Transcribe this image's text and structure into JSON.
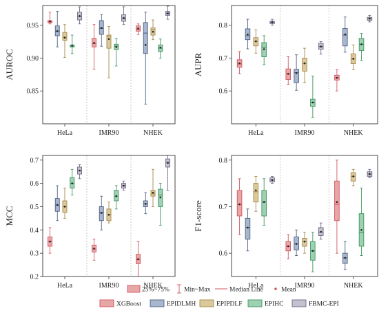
{
  "colors": {
    "XGBoost": {
      "fill": "#e8a7a7",
      "line": "#d2545e"
    },
    "EPIDLMH": {
      "fill": "#a9b6cf",
      "line": "#4f617f"
    },
    "EPIPDLF": {
      "fill": "#dcc99b",
      "line": "#a5894a"
    },
    "EPIHC": {
      "fill": "#9ed0b2",
      "line": "#3f9462"
    },
    "FBMC-EPI": {
      "fill": "#c3c0cf",
      "line": "#6f6a82"
    }
  },
  "legend": {
    "box_label": "25%~75%",
    "range_label": "Min~Max",
    "median_label": "Median Line",
    "mean_label": "Mean",
    "series": [
      "XGBoost",
      "EPIDLMH",
      "EPIPDLF",
      "EPIHC",
      "FBMC-EPI"
    ]
  },
  "chart_data": [
    {
      "type": "box",
      "ylabel": "AUROC",
      "categories": [
        "HeLa",
        "IMR90",
        "NHEK"
      ],
      "ylim": [
        0.8,
        0.98
      ],
      "yticks": [
        0.85,
        0.9,
        0.95
      ],
      "tick_labels": [
        "0.85",
        "0.90",
        "0.95"
      ],
      "series": [
        {
          "name": "XGBoost",
          "boxes": [
            {
              "min": 0.952,
              "q1": 0.954,
              "median": 0.955,
              "q3": 0.957,
              "max": 0.97,
              "mean": 0.956
            },
            {
              "min": 0.883,
              "q1": 0.917,
              "median": 0.922,
              "q3": 0.93,
              "max": 0.951,
              "mean": 0.923
            },
            {
              "min": 0.936,
              "q1": 0.941,
              "median": 0.944,
              "q3": 0.949,
              "max": 0.952,
              "mean": 0.945
            }
          ]
        },
        {
          "name": "EPIDLMH",
          "boxes": [
            {
              "min": 0.917,
              "q1": 0.934,
              "median": 0.941,
              "q3": 0.949,
              "max": 0.971,
              "mean": 0.941
            },
            {
              "min": 0.918,
              "q1": 0.936,
              "median": 0.945,
              "q3": 0.957,
              "max": 0.966,
              "mean": 0.946
            },
            {
              "min": 0.83,
              "q1": 0.907,
              "median": 0.938,
              "q3": 0.954,
              "max": 0.97,
              "mean": 0.92
            }
          ]
        },
        {
          "name": "EPIPDLF",
          "boxes": [
            {
              "min": 0.901,
              "q1": 0.927,
              "median": 0.932,
              "q3": 0.939,
              "max": 0.951,
              "mean": 0.931
            },
            {
              "min": 0.87,
              "q1": 0.915,
              "median": 0.933,
              "q3": 0.935,
              "max": 0.948,
              "mean": 0.929
            },
            {
              "min": 0.928,
              "q1": 0.935,
              "median": 0.943,
              "q3": 0.946,
              "max": 0.958,
              "mean": 0.94
            }
          ]
        },
        {
          "name": "EPIHC",
          "boxes": [
            {
              "min": 0.907,
              "q1": 0.917,
              "median": 0.918,
              "q3": 0.92,
              "max": 0.935,
              "mean": 0.919
            },
            {
              "min": 0.888,
              "q1": 0.913,
              "median": 0.918,
              "q3": 0.921,
              "max": 0.93,
              "mean": 0.917
            },
            {
              "min": 0.9,
              "q1": 0.91,
              "median": 0.915,
              "q3": 0.92,
              "max": 0.929,
              "mean": 0.916
            }
          ]
        },
        {
          "name": "FBMC-EPI",
          "boxes": [
            {
              "min": 0.952,
              "q1": 0.958,
              "median": 0.963,
              "q3": 0.97,
              "max": 0.978,
              "mean": 0.964
            },
            {
              "min": 0.951,
              "q1": 0.956,
              "median": 0.96,
              "q3": 0.966,
              "max": 0.978,
              "mean": 0.961
            },
            {
              "min": 0.959,
              "q1": 0.965,
              "median": 0.968,
              "q3": 0.971,
              "max": 0.979,
              "mean": 0.968
            }
          ]
        }
      ]
    },
    {
      "type": "box",
      "ylabel": "AUPR",
      "categories": [
        "HeLa",
        "IMR90",
        "NHEK"
      ],
      "ylim": [
        0.5,
        0.86
      ],
      "yticks": [
        0.6,
        0.7,
        0.8
      ],
      "tick_labels": [
        "0.6",
        "0.7",
        "0.8"
      ],
      "series": [
        {
          "name": "XGBoost",
          "boxes": [
            {
              "min": 0.652,
              "q1": 0.672,
              "median": 0.682,
              "q3": 0.695,
              "max": 0.72,
              "mean": 0.684
            },
            {
              "min": 0.62,
              "q1": 0.635,
              "median": 0.652,
              "q3": 0.667,
              "max": 0.704,
              "mean": 0.652
            },
            {
              "min": 0.6,
              "q1": 0.633,
              "median": 0.64,
              "q3": 0.648,
              "max": 0.665,
              "mean": 0.64
            }
          ]
        },
        {
          "name": "EPIDLMH",
          "boxes": [
            {
              "min": 0.728,
              "q1": 0.756,
              "median": 0.768,
              "q3": 0.789,
              "max": 0.818,
              "mean": 0.772
            },
            {
              "min": 0.602,
              "q1": 0.625,
              "median": 0.656,
              "q3": 0.666,
              "max": 0.71,
              "mean": 0.654
            },
            {
              "min": 0.718,
              "q1": 0.737,
              "median": 0.77,
              "q3": 0.79,
              "max": 0.825,
              "mean": 0.772
            }
          ]
        },
        {
          "name": "EPIPDLF",
          "boxes": [
            {
              "min": 0.715,
              "q1": 0.737,
              "median": 0.751,
              "q3": 0.762,
              "max": 0.786,
              "mean": 0.751
            },
            {
              "min": 0.625,
              "q1": 0.66,
              "median": 0.684,
              "q3": 0.7,
              "max": 0.73,
              "mean": 0.684
            },
            {
              "min": 0.665,
              "q1": 0.683,
              "median": 0.697,
              "q3": 0.713,
              "max": 0.74,
              "mean": 0.698
            }
          ]
        },
        {
          "name": "EPIHC",
          "boxes": [
            {
              "min": 0.68,
              "q1": 0.704,
              "median": 0.733,
              "q3": 0.747,
              "max": 0.768,
              "mean": 0.727
            },
            {
              "min": 0.52,
              "q1": 0.553,
              "median": 0.565,
              "q3": 0.575,
              "max": 0.645,
              "mean": 0.565
            },
            {
              "min": 0.693,
              "q1": 0.723,
              "median": 0.742,
              "q3": 0.76,
              "max": 0.775,
              "mean": 0.742
            }
          ]
        },
        {
          "name": "FBMC-EPI",
          "boxes": [
            {
              "min": 0.8,
              "q1": 0.805,
              "median": 0.809,
              "q3": 0.812,
              "max": 0.818,
              "mean": 0.809
            },
            {
              "min": 0.712,
              "q1": 0.727,
              "median": 0.735,
              "q3": 0.745,
              "max": 0.75,
              "mean": 0.735
            },
            {
              "min": 0.81,
              "q1": 0.815,
              "median": 0.82,
              "q3": 0.824,
              "max": 0.83,
              "mean": 0.82
            }
          ]
        }
      ]
    },
    {
      "type": "box",
      "ylabel": "MCC",
      "categories": [
        "HeLa",
        "IMR90",
        "NHEK"
      ],
      "ylim": [
        0.2,
        0.72
      ],
      "yticks": [
        0.2,
        0.3,
        0.4,
        0.5,
        0.6,
        0.7
      ],
      "tick_labels": [
        "0.2",
        "0.3",
        "0.4",
        "0.5",
        "0.6",
        "0.7"
      ],
      "series": [
        {
          "name": "XGBoost",
          "boxes": [
            {
              "min": 0.3,
              "q1": 0.33,
              "median": 0.35,
              "q3": 0.37,
              "max": 0.41,
              "mean": 0.35
            },
            {
              "min": 0.27,
              "q1": 0.305,
              "median": 0.318,
              "q3": 0.335,
              "max": 0.36,
              "mean": 0.32
            },
            {
              "min": 0.2,
              "q1": 0.255,
              "median": 0.272,
              "q3": 0.295,
              "max": 0.35,
              "mean": 0.275
            }
          ]
        },
        {
          "name": "EPIDLMH",
          "boxes": [
            {
              "min": 0.44,
              "q1": 0.48,
              "median": 0.505,
              "q3": 0.535,
              "max": 0.59,
              "mean": 0.508
            },
            {
              "min": 0.4,
              "q1": 0.44,
              "median": 0.475,
              "q3": 0.5,
              "max": 0.545,
              "mean": 0.473
            },
            {
              "min": 0.47,
              "q1": 0.5,
              "median": 0.512,
              "q3": 0.525,
              "max": 0.56,
              "mean": 0.512
            }
          ]
        },
        {
          "name": "EPIPDLF",
          "boxes": [
            {
              "min": 0.45,
              "q1": 0.475,
              "median": 0.5,
              "q3": 0.525,
              "max": 0.58,
              "mean": 0.5
            },
            {
              "min": 0.43,
              "q1": 0.44,
              "median": 0.465,
              "q3": 0.49,
              "max": 0.52,
              "mean": 0.465
            },
            {
              "min": 0.5,
              "q1": 0.545,
              "median": 0.555,
              "q3": 0.57,
              "max": 0.66,
              "mean": 0.56
            }
          ]
        },
        {
          "name": "EPIHC",
          "boxes": [
            {
              "min": 0.55,
              "q1": 0.58,
              "median": 0.6,
              "q3": 0.625,
              "max": 0.66,
              "mean": 0.6
            },
            {
              "min": 0.49,
              "q1": 0.525,
              "median": 0.545,
              "q3": 0.57,
              "max": 0.59,
              "mean": 0.545
            },
            {
              "min": 0.42,
              "q1": 0.5,
              "median": 0.55,
              "q3": 0.575,
              "max": 0.6,
              "mean": 0.54
            }
          ]
        },
        {
          "name": "FBMC-EPI",
          "boxes": [
            {
              "min": 0.62,
              "q1": 0.64,
              "median": 0.655,
              "q3": 0.67,
              "max": 0.68,
              "mean": 0.655
            },
            {
              "min": 0.57,
              "q1": 0.58,
              "median": 0.59,
              "q3": 0.6,
              "max": 0.61,
              "mean": 0.59
            },
            {
              "min": 0.57,
              "q1": 0.67,
              "median": 0.69,
              "q3": 0.705,
              "max": 0.72,
              "mean": 0.688
            }
          ]
        }
      ]
    },
    {
      "type": "box",
      "ylabel": "F1-score",
      "categories": [
        "HeLa",
        "IMR90",
        "NHEK"
      ],
      "ylim": [
        0.55,
        0.81
      ],
      "yticks": [
        0.6,
        0.7,
        0.8
      ],
      "tick_labels": [
        "0.6",
        "0.7",
        "0.8"
      ],
      "series": [
        {
          "name": "XGBoost",
          "boxes": [
            {
              "min": 0.64,
              "q1": 0.68,
              "median": 0.705,
              "q3": 0.735,
              "max": 0.76,
              "mean": 0.705
            },
            {
              "min": 0.588,
              "q1": 0.605,
              "median": 0.615,
              "q3": 0.625,
              "max": 0.64,
              "mean": 0.615
            },
            {
              "min": 0.6,
              "q1": 0.67,
              "median": 0.705,
              "q3": 0.755,
              "max": 0.8,
              "mean": 0.71
            }
          ]
        },
        {
          "name": "EPIDLMH",
          "boxes": [
            {
              "min": 0.605,
              "q1": 0.63,
              "median": 0.655,
              "q3": 0.675,
              "max": 0.695,
              "mean": 0.655
            },
            {
              "min": 0.595,
              "q1": 0.607,
              "median": 0.62,
              "q3": 0.635,
              "max": 0.65,
              "mean": 0.62
            },
            {
              "min": 0.565,
              "q1": 0.578,
              "median": 0.59,
              "q3": 0.6,
              "max": 0.625,
              "mean": 0.59
            }
          ]
        },
        {
          "name": "EPIPDLF",
          "boxes": [
            {
              "min": 0.69,
              "q1": 0.71,
              "median": 0.732,
              "q3": 0.75,
              "max": 0.765,
              "mean": 0.735
            },
            {
              "min": 0.6,
              "q1": 0.615,
              "median": 0.625,
              "q3": 0.632,
              "max": 0.645,
              "mean": 0.625
            },
            {
              "min": 0.745,
              "q1": 0.755,
              "median": 0.765,
              "q3": 0.773,
              "max": 0.78,
              "mean": 0.765
            }
          ]
        },
        {
          "name": "EPIHC",
          "boxes": [
            {
              "min": 0.66,
              "q1": 0.68,
              "median": 0.71,
              "q3": 0.735,
              "max": 0.76,
              "mean": 0.71
            },
            {
              "min": 0.56,
              "q1": 0.585,
              "median": 0.605,
              "q3": 0.625,
              "max": 0.645,
              "mean": 0.605
            },
            {
              "min": 0.595,
              "q1": 0.615,
              "median": 0.645,
              "q3": 0.685,
              "max": 0.74,
              "mean": 0.65
            }
          ]
        },
        {
          "name": "FBMC-EPI",
          "boxes": [
            {
              "min": 0.75,
              "q1": 0.753,
              "median": 0.758,
              "q3": 0.762,
              "max": 0.765,
              "mean": 0.757
            },
            {
              "min": 0.63,
              "q1": 0.638,
              "median": 0.645,
              "q3": 0.655,
              "max": 0.665,
              "mean": 0.646
            },
            {
              "min": 0.762,
              "q1": 0.765,
              "median": 0.77,
              "q3": 0.775,
              "max": 0.78,
              "mean": 0.77
            }
          ]
        }
      ]
    }
  ]
}
